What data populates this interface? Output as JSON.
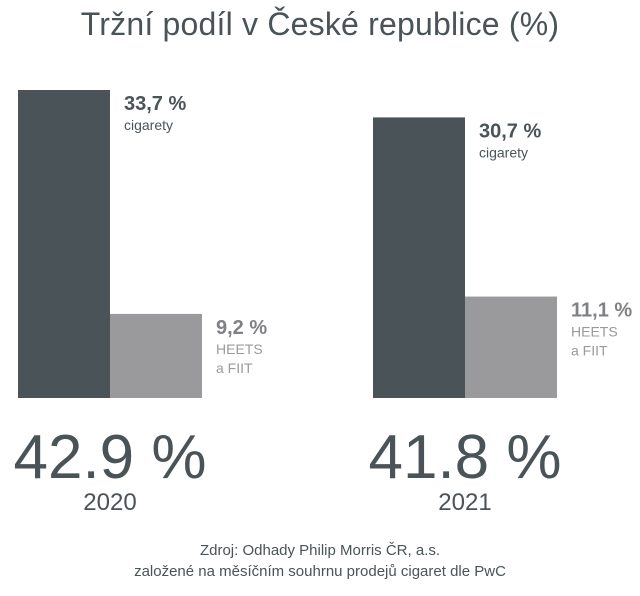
{
  "chart_data": {
    "type": "bar",
    "title": "Tržní podíl v České republice (%)",
    "categories": [
      "2020",
      "2021"
    ],
    "series": [
      {
        "name": "cigarety",
        "name_lines": [
          "cigarety"
        ],
        "values": [
          33.7,
          30.7
        ],
        "labels": [
          "33,7 %",
          "30,7 %"
        ],
        "color": "#4a5357"
      },
      {
        "name": "HEETS a FIIT",
        "name_lines": [
          "HEETS",
          "a FIIT"
        ],
        "values": [
          9.2,
          11.1
        ],
        "labels": [
          "9,2 %",
          "11,1 %"
        ],
        "color": "#9a9a9d"
      }
    ],
    "totals": [
      "42.9 %",
      "41.8 %"
    ],
    "ylim": [
      0,
      33.7
    ],
    "grid": false,
    "legend": "none"
  },
  "source": {
    "line1": "Zdroj: Odhady Philip Morris ČR, a.s.",
    "line2": "založené na měsíčním souhrnu prodejů cigaret dle PwC"
  }
}
